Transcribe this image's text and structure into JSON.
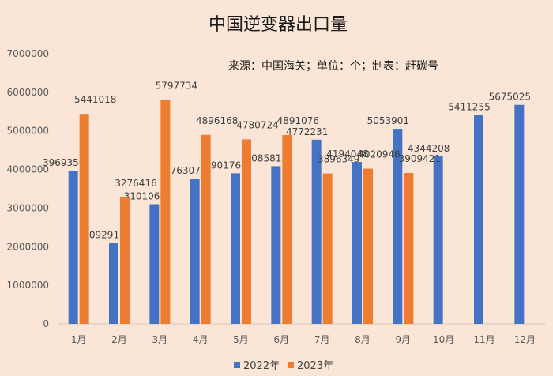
{
  "chart_data": {
    "type": "bar",
    "title": "中国逆变器出口量",
    "annotation": "来源：中国海关；单位：个；制表：赶碳号",
    "categories": [
      "1月",
      "2月",
      "3月",
      "4月",
      "5月",
      "6月",
      "7月",
      "8月",
      "9月",
      "10月",
      "11月",
      "12月"
    ],
    "series": [
      {
        "name": "2022年",
        "color": "#4472c4",
        "values": [
          3969350,
          2092915,
          3101068,
          3763074,
          3901760,
          4085815,
          4772231,
          4194048,
          5053901,
          4344208,
          5411255,
          5675025
        ]
      },
      {
        "name": "2023年",
        "color": "#ed7d31",
        "values": [
          5441018,
          3276416,
          5797734,
          4896168,
          4780724,
          4891076,
          3896349,
          4020946,
          3909421,
          null,
          null,
          null
        ]
      }
    ],
    "y_ticks": [
      0,
      1000000,
      2000000,
      3000000,
      4000000,
      5000000,
      6000000,
      7000000
    ],
    "y_tick_labels": [
      "0",
      "1000000",
      "2000000",
      "3000000",
      "4000000",
      "5000000",
      "6000000",
      "7000000"
    ],
    "ylim": [
      0,
      7000000
    ],
    "grid": false,
    "legend_position": "bottom-center",
    "xlabel": "",
    "ylabel": ""
  }
}
